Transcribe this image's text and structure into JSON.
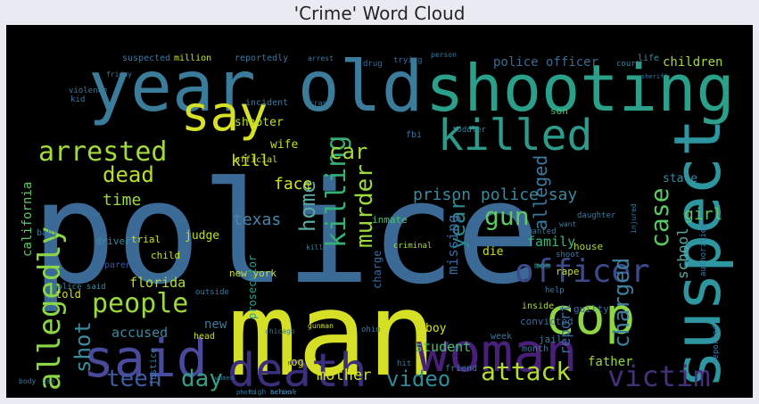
{
  "chart_data": {
    "type": "wordcloud",
    "title": "'Crime' Word Cloud",
    "background_color": "#000000",
    "words": [
      {
        "text": "police",
        "weight": 100,
        "color": "#3b6a96",
        "rotate": 0
      },
      {
        "text": "man",
        "weight": 90,
        "color": "#d5df26",
        "rotate": 0
      },
      {
        "text": "year old",
        "weight": 60,
        "color": "#3a7c9a",
        "rotate": 0
      },
      {
        "text": "shooting",
        "weight": 60,
        "color": "#2aa08a",
        "rotate": 0
      },
      {
        "text": "suspect",
        "weight": 55,
        "color": "#2e96a0",
        "rotate": -90
      },
      {
        "text": "woman",
        "weight": 45,
        "color": "#482079",
        "rotate": 0
      },
      {
        "text": "cop",
        "weight": 45,
        "color": "#8fd644",
        "rotate": 0
      },
      {
        "text": "said",
        "weight": 42,
        "color": "#4a4a9a",
        "rotate": 0
      },
      {
        "text": "death",
        "weight": 40,
        "color": "#3a2f7a",
        "rotate": 0
      },
      {
        "text": "killed",
        "weight": 36,
        "color": "#2d9a8a",
        "rotate": 0
      },
      {
        "text": "say",
        "weight": 34,
        "color": "#d6e024",
        "rotate": 0
      },
      {
        "text": "allegedly",
        "weight": 26,
        "color": "#8bd646",
        "rotate": -90
      },
      {
        "text": "officer",
        "weight": 25,
        "color": "#3d4a8a",
        "rotate": 0
      },
      {
        "text": "victim",
        "weight": 23,
        "color": "#46307e",
        "rotate": 0
      },
      {
        "text": "arrested",
        "weight": 21,
        "color": "#a3da3b",
        "rotate": 0
      },
      {
        "text": "people",
        "weight": 20,
        "color": "#9bd93c",
        "rotate": 0
      },
      {
        "text": "attack",
        "weight": 20,
        "color": "#b3dd2f",
        "rotate": 0
      },
      {
        "text": "teen",
        "weight": 19,
        "color": "#3f5aa0",
        "rotate": 0
      },
      {
        "text": "day",
        "weight": 19,
        "color": "#35a086",
        "rotate": 0
      },
      {
        "text": "video",
        "weight": 19,
        "color": "#2f8a9a",
        "rotate": 0
      },
      {
        "text": "killing",
        "weight": 19,
        "color": "#35b077",
        "rotate": -90
      },
      {
        "text": "gun",
        "weight": 19,
        "color": "#5ec962",
        "rotate": 0
      },
      {
        "text": "case",
        "weight": 17,
        "color": "#5ac865",
        "rotate": -90
      },
      {
        "text": "charged",
        "weight": 16,
        "color": "#3f7fa0",
        "rotate": -90
      },
      {
        "text": "murder",
        "weight": 16,
        "color": "#9dd93b",
        "rotate": -90
      },
      {
        "text": "home",
        "weight": 15,
        "color": "#5aa8a0",
        "rotate": -90
      },
      {
        "text": "dead",
        "weight": 15,
        "color": "#b8de29",
        "rotate": 0
      },
      {
        "text": "car",
        "weight": 15,
        "color": "#a6da3a",
        "rotate": 0
      },
      {
        "text": "shot",
        "weight": 15,
        "color": "#3b8aa0",
        "rotate": -90
      },
      {
        "text": "year",
        "weight": 14,
        "color": "#2a8a90",
        "rotate": -90
      },
      {
        "text": "alleged",
        "weight": 12,
        "color": "#3c7aa0",
        "rotate": -90
      },
      {
        "text": "prison police say",
        "weight": 11,
        "color": "#3b8aa0",
        "rotate": 0
      },
      {
        "text": "face",
        "weight": 10,
        "color": "#d0e11c",
        "rotate": 0
      },
      {
        "text": "kill",
        "weight": 10,
        "color": "#c8e020",
        "rotate": 0
      },
      {
        "text": "time",
        "weight": 10,
        "color": "#9bd93c",
        "rotate": 0
      },
      {
        "text": "girl",
        "weight": 10,
        "color": "#5ec962",
        "rotate": 0
      },
      {
        "text": "texas",
        "weight": 10,
        "color": "#4a86a8",
        "rotate": 0
      },
      {
        "text": "mother",
        "weight": 10,
        "color": "#d2e21b",
        "rotate": 0
      },
      {
        "text": "california",
        "weight": 10,
        "color": "#5ec962",
        "rotate": -90
      },
      {
        "text": "missing",
        "weight": 9,
        "color": "#3a6ba0",
        "rotate": -90
      },
      {
        "text": "florida",
        "weight": 9,
        "color": "#b5dd2e",
        "rotate": 0
      },
      {
        "text": "accused",
        "weight": 9,
        "color": "#3a8aa0",
        "rotate": 0
      },
      {
        "text": "student",
        "weight": 9,
        "color": "#4ac16d",
        "rotate": 0
      },
      {
        "text": "family",
        "weight": 9,
        "color": "#38b77b",
        "rotate": 0
      },
      {
        "text": "report",
        "weight": 9,
        "color": "#3a6ba0",
        "rotate": -90
      },
      {
        "text": "school",
        "weight": 9,
        "color": "#5aa8a0",
        "rotate": -90
      },
      {
        "text": "police officer",
        "weight": 8,
        "color": "#3b6a96",
        "rotate": 0
      },
      {
        "text": "children",
        "weight": 8,
        "color": "#a6da3a",
        "rotate": 0
      },
      {
        "text": "shooter",
        "weight": 7,
        "color": "#b8de29",
        "rotate": 0
      },
      {
        "text": "wife",
        "weight": 7,
        "color": "#c0df25",
        "rotate": 0
      },
      {
        "text": "judge",
        "weight": 7,
        "color": "#bde027",
        "rotate": 0
      },
      {
        "text": "new",
        "weight": 7,
        "color": "#3a7aa0",
        "rotate": 0
      },
      {
        "text": "father",
        "weight": 7,
        "color": "#9ad93c",
        "rotate": 0
      },
      {
        "text": "boy",
        "weight": 7,
        "color": "#d2e21b",
        "rotate": 0
      },
      {
        "text": "state",
        "weight": 7,
        "color": "#3a8aa0",
        "rotate": 0
      },
      {
        "text": "told",
        "weight": 7,
        "color": "#d0e11c",
        "rotate": 0
      },
      {
        "text": "trial",
        "weight": 6,
        "color": "#cfe11c",
        "rotate": 0
      },
      {
        "text": "prosecutor",
        "weight": 6,
        "color": "#2a9a8a",
        "rotate": -90
      },
      {
        "text": "charge",
        "weight": 6,
        "color": "#3a6ba0",
        "rotate": -90
      },
      {
        "text": "inmate",
        "weight": 6,
        "color": "#4ac16d",
        "rotate": 0
      },
      {
        "text": "die",
        "weight": 6,
        "color": "#c8e020",
        "rotate": 0
      },
      {
        "text": "dog",
        "weight": 6,
        "color": "#d2e21b",
        "rotate": 0
      },
      {
        "text": "new york",
        "weight": 6,
        "color": "#c8e020",
        "rotate": 0
      },
      {
        "text": "driver",
        "weight": 5,
        "color": "#3a8aa0",
        "rotate": 0
      },
      {
        "text": "child",
        "weight": 5,
        "color": "#c8e020",
        "rotate": 0
      },
      {
        "text": "parent",
        "weight": 5,
        "color": "#3f5aa0",
        "rotate": 0
      },
      {
        "text": "house",
        "weight": 5,
        "color": "#a6da3a",
        "rotate": 0
      },
      {
        "text": "rape",
        "weight": 5,
        "color": "#c8e020",
        "rotate": 0
      },
      {
        "text": "convicted",
        "weight": 5,
        "color": "#3a6ba0",
        "rotate": 0
      },
      {
        "text": "guilty",
        "weight": 5,
        "color": "#3a6ba0",
        "rotate": 0
      },
      {
        "text": "jail",
        "weight": 5,
        "color": "#3a7aa0",
        "rotate": 0
      },
      {
        "text": "mom",
        "weight": 5,
        "color": "#2a9a8a",
        "rotate": 0
      },
      {
        "text": "million",
        "weight": 4,
        "color": "#c8e020",
        "rotate": 0
      },
      {
        "text": "reportedly",
        "weight": 4,
        "color": "#3a7aa0",
        "rotate": 0
      },
      {
        "text": "suspected",
        "weight": 4,
        "color": "#3a7aa0",
        "rotate": 0
      },
      {
        "text": "incident",
        "weight": 4,
        "color": "#3a7aa0",
        "rotate": 0
      },
      {
        "text": "official",
        "weight": 4,
        "color": "#c8e020",
        "rotate": 0
      },
      {
        "text": "drug",
        "weight": 4,
        "color": "#3a6ba0",
        "rotate": 0
      },
      {
        "text": "trying",
        "weight": 4,
        "color": "#3a6ba0",
        "rotate": 0
      },
      {
        "text": "son",
        "weight": 4,
        "color": "#4ac16d",
        "rotate": 0
      },
      {
        "text": "life",
        "weight": 4,
        "color": "#3a8aa0",
        "rotate": 0
      },
      {
        "text": "court",
        "weight": 4,
        "color": "#3a8aa0",
        "rotate": 0
      },
      {
        "text": "friend",
        "weight": 4,
        "color": "#3a7aa0",
        "rotate": 0
      },
      {
        "text": "month",
        "weight": 4,
        "color": "#3a7aa0",
        "rotate": 0
      },
      {
        "text": "week",
        "weight": 4,
        "color": "#3a7aa0",
        "rotate": 0
      },
      {
        "text": "help",
        "weight": 4,
        "color": "#3a7aa0",
        "rotate": 0
      },
      {
        "text": "outside",
        "weight": 4,
        "color": "#3a7aa0",
        "rotate": 0
      },
      {
        "text": "inside",
        "weight": 4,
        "color": "#a6da3a",
        "rotate": 0
      },
      {
        "text": "police said",
        "weight": 4,
        "color": "#3a8aa0",
        "rotate": 0
      },
      {
        "text": "baby",
        "weight": 4,
        "color": "#3a7aa0",
        "rotate": 0
      },
      {
        "text": "head",
        "weight": 4,
        "color": "#c8e020",
        "rotate": 0
      },
      {
        "text": "violence",
        "weight": 4,
        "color": "#3a7aa0",
        "rotate": 0
      },
      {
        "text": "kid",
        "weight": 4,
        "color": "#3a7aa0",
        "rotate": 0
      },
      {
        "text": "hit",
        "weight": 4,
        "color": "#3a7aa0",
        "rotate": 0
      },
      {
        "text": "justice",
        "weight": 4,
        "color": "#3a7aa0",
        "rotate": -90
      },
      {
        "text": "authorities",
        "weight": 4,
        "color": "#3a7aa0",
        "rotate": -90
      },
      {
        "text": "reported",
        "weight": 4,
        "color": "#3a7aa0",
        "rotate": -90
      },
      {
        "text": "fbi",
        "weight": 4,
        "color": "#3a7aa0",
        "rotate": 0
      },
      {
        "text": "ohio",
        "weight": 3,
        "color": "#3a7aa0",
        "rotate": 0
      },
      {
        "text": "shoot",
        "weight": 3,
        "color": "#3a7aa0",
        "rotate": 0
      },
      {
        "text": "toddler",
        "weight": 3,
        "color": "#3a7aa0",
        "rotate": 0
      },
      {
        "text": "person",
        "weight": 3,
        "color": "#3a7aa0",
        "rotate": 0
      },
      {
        "text": "arrest",
        "weight": 3,
        "color": "#3a7aa0",
        "rotate": 0
      },
      {
        "text": "crash",
        "weight": 3,
        "color": "#3a7aa0",
        "rotate": 0
      },
      {
        "text": "know",
        "weight": 3,
        "color": "#3a7aa0",
        "rotate": 0
      },
      {
        "text": "daughter",
        "weight": 3,
        "color": "#3a7aa0",
        "rotate": 0
      },
      {
        "text": "injured",
        "weight": 3,
        "color": "#3a7aa0",
        "rotate": -90
      },
      {
        "text": "wanted",
        "weight": 3,
        "color": "#3a7aa0",
        "rotate": 0
      },
      {
        "text": "want",
        "weight": 3,
        "color": "#3a7aa0",
        "rotate": 0
      },
      {
        "text": "criminal",
        "weight": 3,
        "color": "#a6da3a",
        "rotate": 0
      },
      {
        "text": "high school",
        "weight": 3,
        "color": "#3a7aa0",
        "rotate": 0
      },
      {
        "text": "chicago",
        "weight": 3,
        "color": "#3a7aa0",
        "rotate": 0
      },
      {
        "text": "killer",
        "weight": 3,
        "color": "#3a7aa0",
        "rotate": 0
      },
      {
        "text": "gunman",
        "weight": 3,
        "color": "#c8e020",
        "rotate": 0
      },
      {
        "text": "friday",
        "weight": 3,
        "color": "#3a7aa0",
        "rotate": 0
      },
      {
        "text": "sheriff",
        "weight": 3,
        "color": "#3a7aa0",
        "rotate": 0
      },
      {
        "text": "photo",
        "weight": 3,
        "color": "#3a7aa0",
        "rotate": 0
      },
      {
        "text": "body",
        "weight": 3,
        "color": "#3a7aa0",
        "rotate": 0
      },
      {
        "text": "use",
        "weight": 3,
        "color": "#3a7aa0",
        "rotate": 0
      },
      {
        "text": "believe",
        "weight": 3,
        "color": "#3a7aa0",
        "rotate": 0
      },
      {
        "text": "women",
        "weight": 3,
        "color": "#3a7aa0",
        "rotate": 0
      }
    ]
  }
}
